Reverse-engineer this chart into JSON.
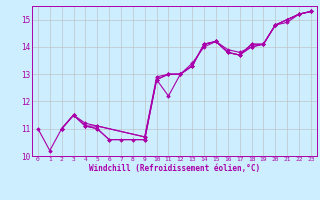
{
  "title": "",
  "xlabel": "Windchill (Refroidissement éolien,°C)",
  "ylabel": "",
  "xlim": [
    -0.5,
    23.5
  ],
  "ylim": [
    10.0,
    15.5
  ],
  "background_color": "#cceeff",
  "line_color": "#aa00aa",
  "grid_color": "#bbbbbb",
  "series": [
    {
      "x": [
        0,
        1,
        2,
        3,
        4,
        5,
        6,
        7,
        8,
        9,
        10,
        11,
        12,
        13,
        14,
        15,
        16,
        17,
        18,
        19,
        20,
        21,
        22,
        23
      ],
      "y": [
        11.0,
        10.2,
        11.0,
        11.5,
        11.1,
        11.0,
        10.6,
        10.6,
        10.6,
        10.6,
        12.8,
        12.2,
        13.0,
        13.3,
        14.1,
        14.2,
        13.8,
        13.7,
        14.1,
        14.1,
        14.8,
        15.0,
        15.2,
        15.3
      ]
    },
    {
      "x": [
        2,
        3,
        4,
        5,
        6,
        9,
        10,
        11,
        12,
        13,
        14,
        15,
        16,
        17,
        18,
        19,
        20,
        21,
        22,
        23
      ],
      "y": [
        11.0,
        11.5,
        11.1,
        11.0,
        10.6,
        10.6,
        12.8,
        13.0,
        13.0,
        13.3,
        14.1,
        14.2,
        13.8,
        13.7,
        14.1,
        14.1,
        14.8,
        15.0,
        15.2,
        15.3
      ]
    },
    {
      "x": [
        2,
        3,
        4,
        5,
        9,
        10,
        11,
        12,
        13,
        14,
        15,
        16,
        17,
        18,
        19,
        20,
        21,
        22,
        23
      ],
      "y": [
        11.0,
        11.5,
        11.1,
        11.1,
        10.7,
        12.8,
        13.0,
        13.0,
        13.3,
        14.1,
        14.2,
        13.8,
        13.7,
        14.0,
        14.1,
        14.8,
        14.9,
        15.2,
        15.3
      ]
    },
    {
      "x": [
        2,
        3,
        4,
        5,
        9,
        10,
        11,
        12,
        13,
        14,
        15,
        16,
        17,
        18,
        19,
        20,
        21,
        22,
        23
      ],
      "y": [
        11.0,
        11.5,
        11.2,
        11.1,
        10.7,
        12.9,
        13.0,
        13.0,
        13.4,
        14.0,
        14.2,
        13.9,
        13.8,
        14.0,
        14.1,
        14.8,
        15.0,
        15.2,
        15.3
      ]
    }
  ],
  "marker": "D",
  "marker_size": 1.8,
  "line_width": 0.8,
  "xtick_fontsize": 4.5,
  "ytick_fontsize": 5.5,
  "xlabel_fontsize": 5.5,
  "xticks": [
    0,
    1,
    2,
    3,
    4,
    5,
    6,
    7,
    8,
    9,
    10,
    11,
    12,
    13,
    14,
    15,
    16,
    17,
    18,
    19,
    20,
    21,
    22,
    23
  ],
  "yticks": [
    10,
    11,
    12,
    13,
    14,
    15
  ]
}
